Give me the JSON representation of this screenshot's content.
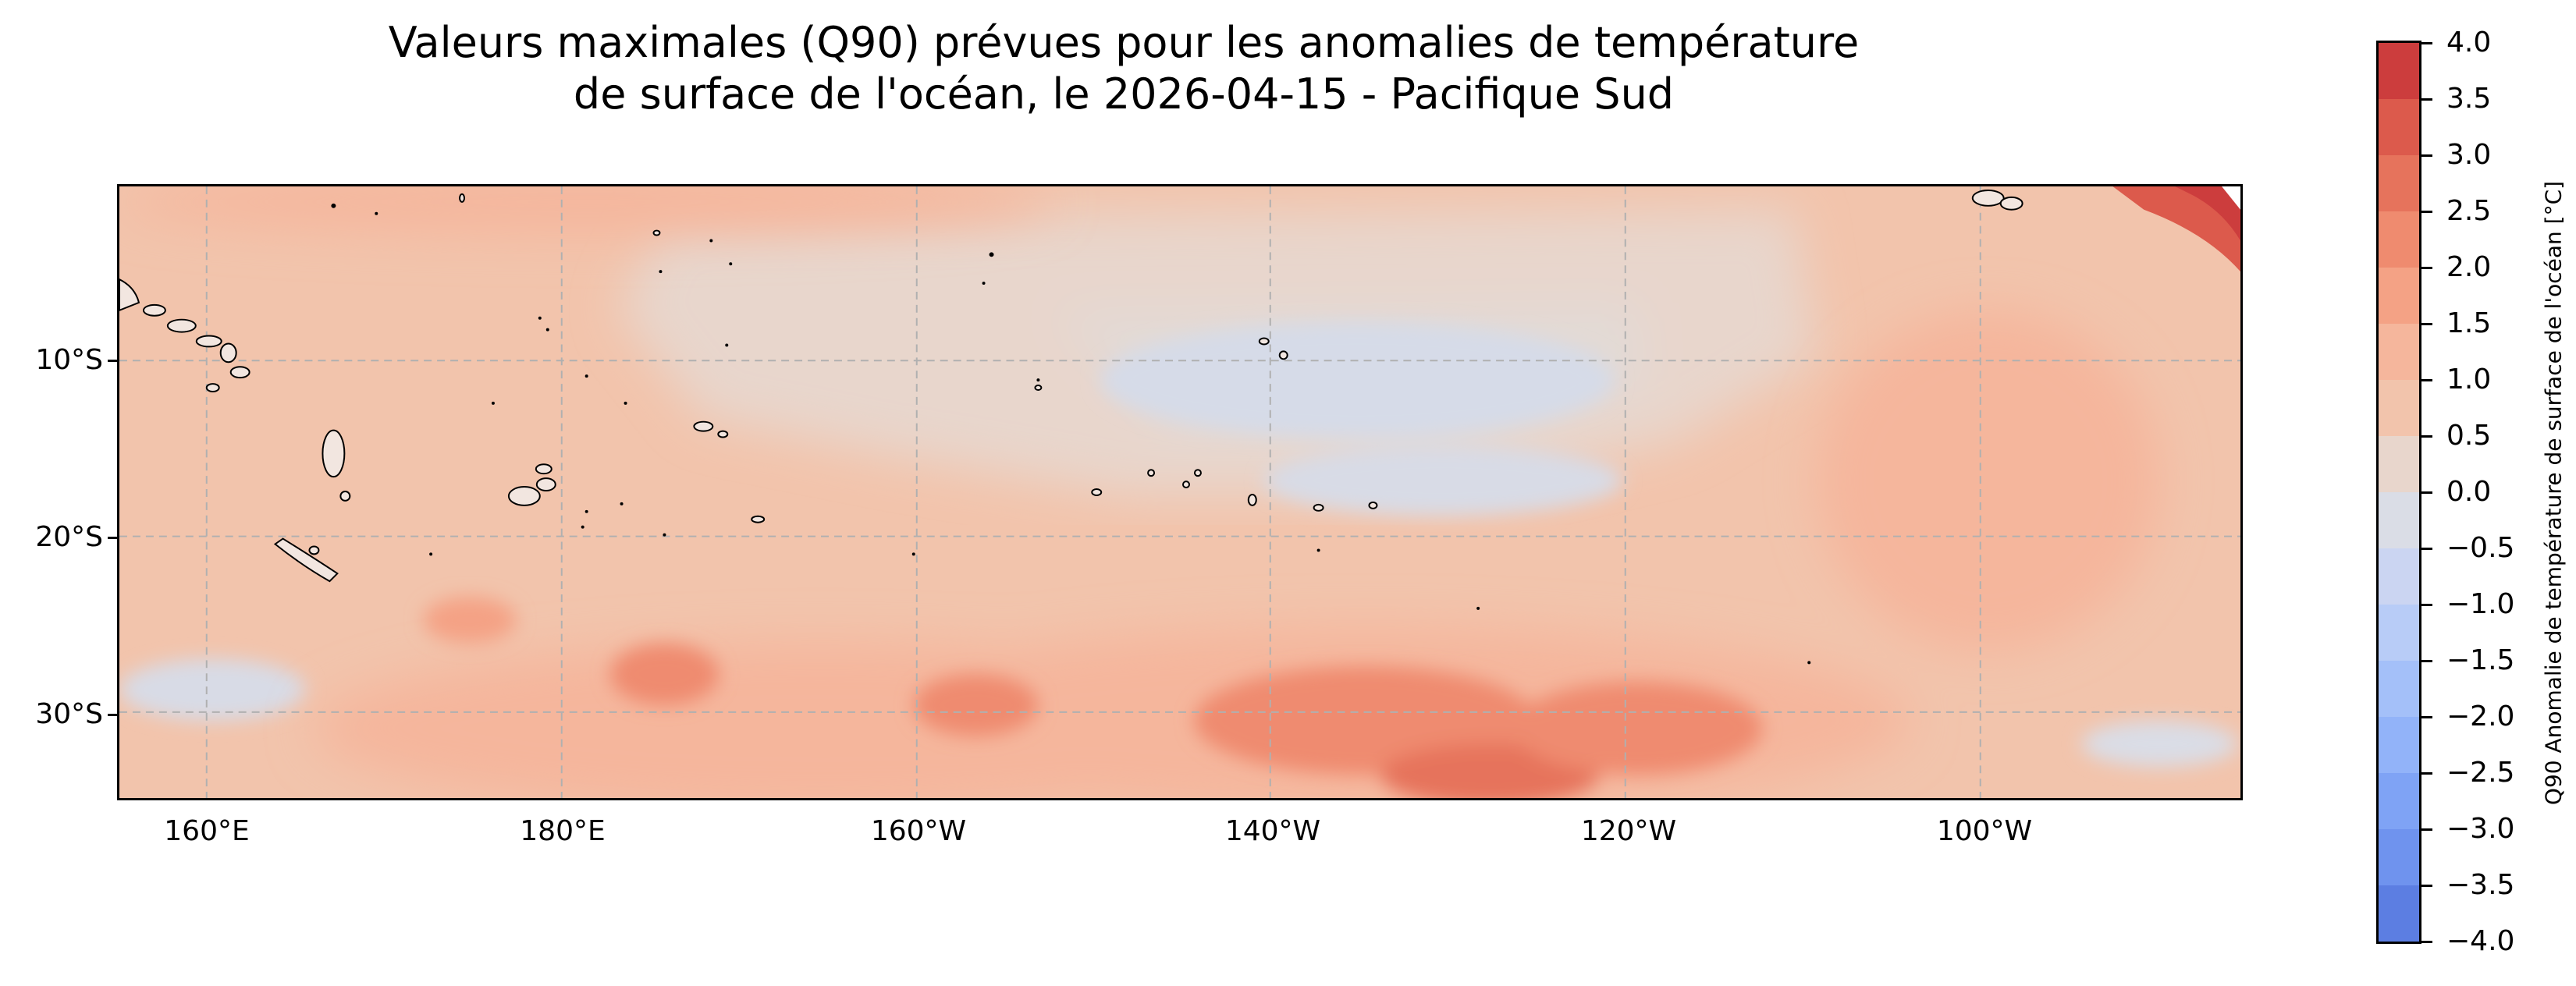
{
  "title": {
    "line1": "Valeurs maximales (Q90) prévues pour les anomalies de température",
    "line2": "de surface de l'océan, le 2026-04-15 - Pacifique Sud"
  },
  "map": {
    "region": "Pacifique Sud",
    "date": "2026-04-15",
    "lat_labels": [
      "10°S",
      "20°S",
      "30°S"
    ],
    "lon_labels": [
      "160°E",
      "180°E",
      "160°W",
      "140°W",
      "120°W",
      "100°W"
    ],
    "gridlines": true
  },
  "colorbar": {
    "title": "Q90 Anomalie de température de surface de l'océan [°C]",
    "min": -4.0,
    "max": 4.0,
    "step": 0.5,
    "tick_labels": [
      "4.0",
      "3.5",
      "3.0",
      "2.5",
      "2.0",
      "1.5",
      "1.0",
      "0.5",
      "0.0",
      "−0.5",
      "−1.0",
      "−1.5",
      "−2.0",
      "−2.5",
      "−3.0",
      "−3.5",
      "−4.0"
    ],
    "colors_top_to_bottom": [
      "#cc3d3d",
      "#dc5a4c",
      "#e6735c",
      "#ef8b6f",
      "#f4a285",
      "#f5b69c",
      "#f2c4ac",
      "#e8d6cc",
      "#dadde6",
      "#cbd5f2",
      "#b8ccf7",
      "#a4c0f9",
      "#92b3f9",
      "#7fa3f5",
      "#6f93ee",
      "#5c7ee2"
    ]
  }
}
